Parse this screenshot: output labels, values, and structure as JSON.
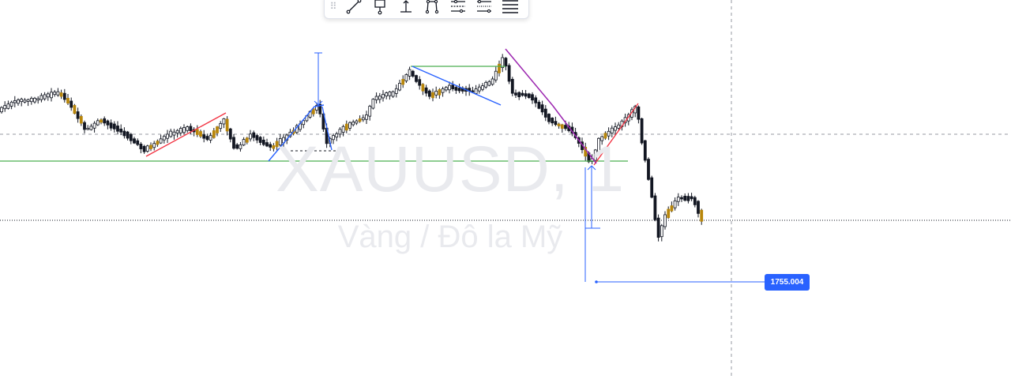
{
  "watermark": {
    "symbol": "XAUUSD, 1",
    "description": "Vàng / Đô la Mỹ"
  },
  "toolbar": {
    "tools": [
      {
        "name": "trend-line-tool-icon"
      },
      {
        "name": "anchor-tool-icon"
      },
      {
        "name": "price-measure-tool-icon"
      },
      {
        "name": "path-tool-icon"
      },
      {
        "name": "fib-levels-tool-icon"
      },
      {
        "name": "channel-tool-icon"
      },
      {
        "name": "horizontal-lines-tool-icon"
      }
    ]
  },
  "price_tag": {
    "label": "1755.004",
    "color": "#2962ff"
  },
  "colors": {
    "candle_up_body": "#ffffff",
    "candle_down_body": "#131722",
    "candle_wick": "#131722",
    "wedge_red": "#f23645",
    "trend_blue": "#2962ff",
    "pattern_purple": "#9c27b0",
    "support_green": "#4caf50",
    "crosshair": "#9598a1",
    "measure_blue": "#2962ff",
    "accent_orange": "#b8860b"
  }
}
